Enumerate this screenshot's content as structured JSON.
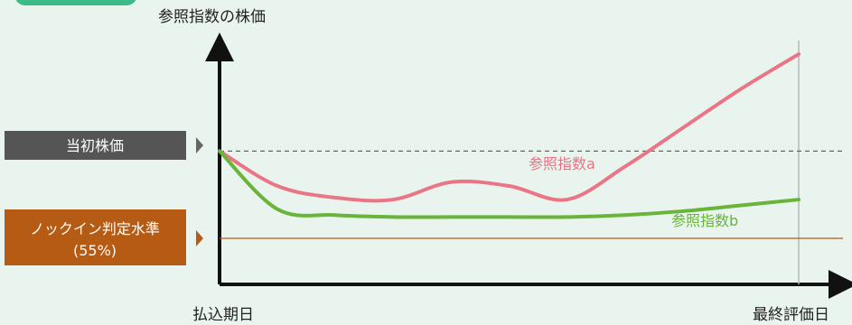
{
  "chart_data": {
    "type": "line",
    "title": "参照指数の株価",
    "x_start_label": "払込期日",
    "x_end_label": "最終評価日",
    "reference_lines": {
      "initial_price": {
        "label": "当初株価",
        "value": 100
      },
      "knock_in": {
        "label": "ノックイン判定水準",
        "sublabel": "(55%)",
        "value": 55
      }
    },
    "series": [
      {
        "name": "参照指数a",
        "x": [
          0,
          10,
          20,
          30,
          40,
          50,
          60,
          70,
          80,
          90,
          100
        ],
        "values": [
          100,
          82,
          76,
          75,
          84,
          82,
          75,
          92,
          112,
          132,
          150
        ],
        "color": "#ea7586"
      },
      {
        "name": "参照指数b",
        "x": [
          0,
          10,
          20,
          30,
          40,
          50,
          60,
          70,
          80,
          90,
          100
        ],
        "values": [
          100,
          70,
          67,
          66,
          66,
          66,
          66,
          67,
          69,
          72,
          75
        ],
        "color": "#69b53a"
      }
    ],
    "xlim": [
      0,
      100
    ],
    "ylim": [
      55,
      150
    ]
  }
}
